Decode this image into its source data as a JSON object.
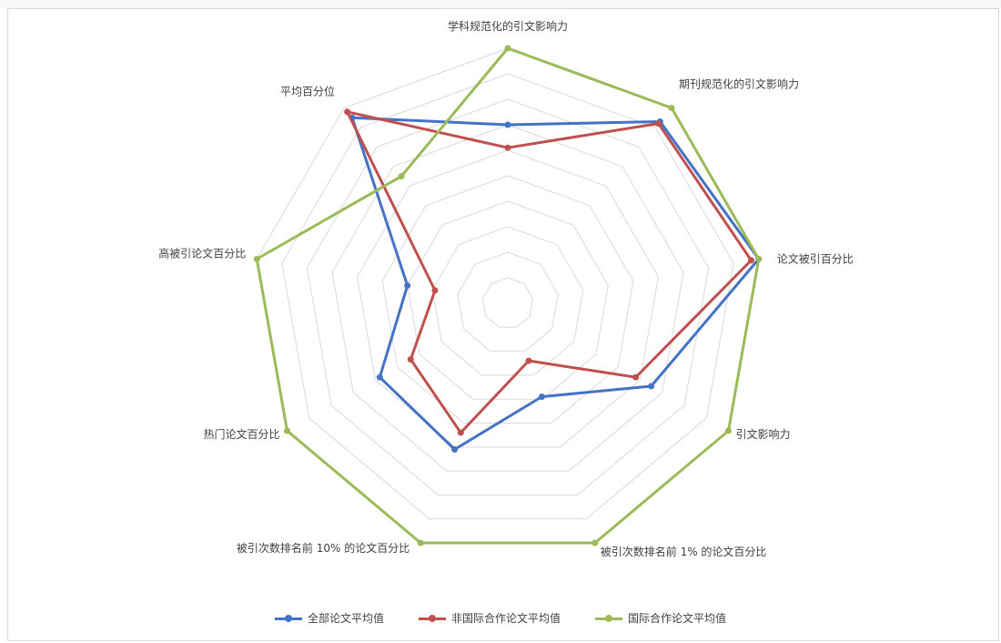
{
  "chart_data": {
    "type": "radar",
    "title": "",
    "axes": [
      "学科规范化的引文影响力",
      "期刊规范化的引文影响力",
      "论文被引百分比",
      "引文影响力",
      "被引次数排名前 1% 的论文百分比",
      "被引次数排名前 10% 的论文百分比",
      "热门论文百分比",
      "高被引论文百分比",
      "平均百分位"
    ],
    "range": [
      0,
      10
    ],
    "grid_rings": 10,
    "legend_position": "bottom",
    "series": [
      {
        "name": "全部论文平均值",
        "color": "#4472c4",
        "values": [
          7.0,
          9.3,
          10.0,
          6.5,
          3.9,
          6.1,
          5.8,
          4.0,
          9.5
        ]
      },
      {
        "name": "非国际合作论文平均值",
        "color": "#c0504d",
        "values": [
          6.1,
          9.2,
          9.7,
          5.8,
          2.4,
          5.4,
          4.4,
          2.9,
          9.8
        ]
      },
      {
        "name": "国际合作论文平均值",
        "color": "#9bbb59",
        "values": [
          10.0,
          10.0,
          10.0,
          10.0,
          10.0,
          10.0,
          10.0,
          10.0,
          6.5
        ]
      }
    ]
  }
}
